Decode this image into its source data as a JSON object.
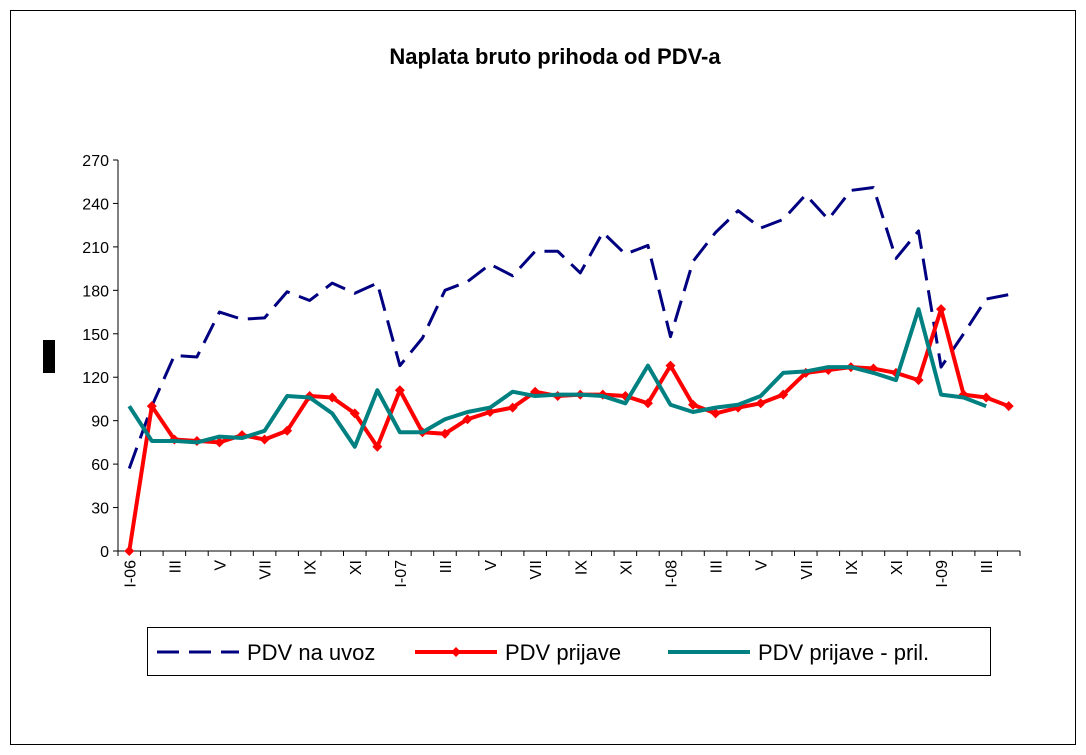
{
  "chart_data": {
    "type": "line",
    "title": "Naplata bruto prihoda od PDV-a",
    "categories": [
      "I-06",
      null,
      "III",
      null,
      "V",
      null,
      "VII",
      null,
      "IX",
      null,
      "XI",
      null,
      "I-07",
      null,
      "III",
      null,
      "V",
      null,
      "VII",
      null,
      "IX",
      null,
      "XI",
      null,
      "I-08",
      null,
      "III",
      null,
      "V",
      null,
      "VII",
      null,
      "IX",
      null,
      "XI",
      null,
      "I-09",
      null,
      "III",
      null
    ],
    "series": [
      {
        "name": "PDV na uvoz",
        "color": "#000080",
        "dashed": true,
        "values": [
          57,
          100,
          135,
          134,
          165,
          160,
          161,
          179,
          173,
          185,
          178,
          185,
          128,
          147,
          180,
          186,
          198,
          190,
          207,
          207,
          192,
          220,
          205,
          211,
          148,
          200,
          220,
          235,
          223,
          229,
          246,
          229,
          249,
          251,
          202,
          221,
          127,
          150,
          174,
          177
        ]
      },
      {
        "name": "PDV prijave",
        "color": "#ff0000",
        "markers": true,
        "values": [
          0,
          100,
          77,
          76,
          75,
          80,
          77,
          83,
          107,
          106,
          95,
          72,
          111,
          82,
          81,
          91,
          96,
          99,
          110,
          107,
          108,
          108,
          107,
          102,
          128,
          101,
          95,
          99,
          102,
          108,
          123,
          125,
          127,
          126,
          123,
          118,
          167,
          108,
          106,
          100
        ]
      },
      {
        "name": "PDV prijave - pril.",
        "color": "#008080",
        "values": [
          100,
          76,
          76,
          75,
          79,
          78,
          83,
          107,
          106,
          95,
          72,
          111,
          82,
          82,
          91,
          96,
          99,
          110,
          107,
          108,
          108,
          107,
          102,
          128,
          101,
          96,
          99,
          101,
          107,
          123,
          124,
          127,
          127,
          123,
          118,
          167,
          108,
          106,
          100,
          null
        ]
      }
    ],
    "ylim": [
      0,
      270
    ],
    "yticks": [
      0,
      30,
      60,
      90,
      120,
      150,
      180,
      210,
      240,
      270
    ],
    "grid": false
  }
}
